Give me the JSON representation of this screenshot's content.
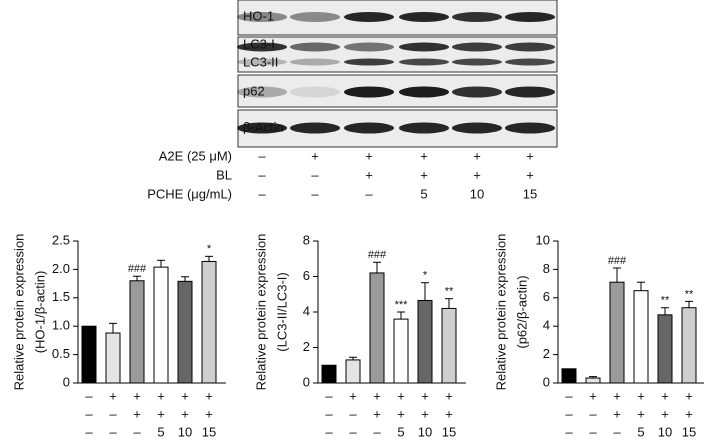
{
  "blot": {
    "bands": [
      "HO-1",
      "LC3-I",
      "LC3-II",
      "p62",
      "β-Actin"
    ],
    "conditions": [
      {
        "label": "A2E (25 μM)",
        "values": [
          "–",
          "+",
          "+",
          "+",
          "+",
          "+"
        ]
      },
      {
        "label": "BL",
        "values": [
          "–",
          "–",
          "+",
          "+",
          "+",
          "+"
        ]
      },
      {
        "label": "PCHE (μg/mL)",
        "values": [
          "–",
          "–",
          "–",
          "5",
          "10",
          "15"
        ]
      }
    ]
  },
  "chart_data": [
    {
      "type": "bar",
      "y_label": [
        "Relative protein expression",
        "(HO-1/β-actin)"
      ],
      "values": [
        1.0,
        0.88,
        1.8,
        2.04,
        1.79,
        2.14
      ],
      "errors": [
        0,
        0.17,
        0.08,
        0.12,
        0.08,
        0.09
      ],
      "annotations": [
        null,
        null,
        "###",
        null,
        null,
        "*"
      ],
      "colors": [
        "#000000",
        "#e4e4e4",
        "#9a9a9a",
        "#ffffff",
        "#666666",
        "#cfcfcf"
      ],
      "ylim": [
        0,
        2.5
      ],
      "yticks": [
        0,
        0.5,
        {
          "value": 1,
          "label": "1.0"
        },
        1.5,
        {
          "value": 2,
          "label": "2.0"
        },
        2.5
      ],
      "conditions": [
        [
          "–",
          "+",
          "+",
          "+",
          "+",
          "+"
        ],
        [
          "–",
          "–",
          "+",
          "+",
          "+",
          "+"
        ],
        [
          "–",
          "–",
          "–",
          "5",
          "10",
          "15"
        ]
      ]
    },
    {
      "type": "bar",
      "y_label": [
        "Relative protein expression",
        "(LC3-II/LC3-I)"
      ],
      "values": [
        1.0,
        1.3,
        6.2,
        3.6,
        4.65,
        4.2
      ],
      "errors": [
        0,
        0.15,
        0.6,
        0.4,
        1.0,
        0.55
      ],
      "annotations": [
        null,
        null,
        "###",
        "***",
        "*",
        "**"
      ],
      "colors": [
        "#000000",
        "#e4e4e4",
        "#9a9a9a",
        "#ffffff",
        "#666666",
        "#cfcfcf"
      ],
      "ylim": [
        0,
        8
      ],
      "yticks": [
        0,
        2,
        4,
        6,
        8
      ],
      "conditions": [
        [
          "–",
          "+",
          "+",
          "+",
          "+",
          "+"
        ],
        [
          "–",
          "–",
          "+",
          "+",
          "+",
          "+"
        ],
        [
          "–",
          "–",
          "–",
          "5",
          "10",
          "15"
        ]
      ]
    },
    {
      "type": "bar",
      "y_label": [
        "Relative protein expression",
        "(p62/β-actin)"
      ],
      "values": [
        1.0,
        0.35,
        7.1,
        6.5,
        4.8,
        5.3
      ],
      "errors": [
        0,
        0.1,
        1.0,
        0.6,
        0.5,
        0.45
      ],
      "annotations": [
        null,
        null,
        "###",
        null,
        "**",
        "**"
      ],
      "colors": [
        "#000000",
        "#e4e4e4",
        "#9a9a9a",
        "#ffffff",
        "#666666",
        "#cfcfcf"
      ],
      "ylim": [
        0,
        10
      ],
      "yticks": [
        0,
        2,
        4,
        6,
        8,
        10
      ],
      "conditions": [
        [
          "–",
          "+",
          "+",
          "+",
          "+",
          "+"
        ],
        [
          "–",
          "–",
          "+",
          "+",
          "+",
          "+"
        ],
        [
          "–",
          "–",
          "–",
          "5",
          "10",
          "15"
        ]
      ]
    }
  ]
}
